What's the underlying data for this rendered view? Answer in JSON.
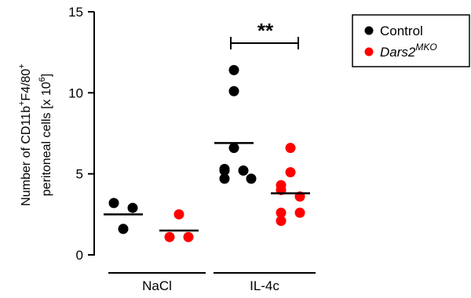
{
  "chart_data": {
    "type": "scatter",
    "title": "",
    "ylabel_line1_parts": [
      "Number of CD11b",
      "+",
      "F4/80",
      "+"
    ],
    "ylabel_line2_parts": [
      "peritoneal cells [x 10",
      "6",
      "]"
    ],
    "ylim": [
      0,
      15
    ],
    "yticks": [
      "0",
      "5",
      "10",
      "15"
    ],
    "groups": [
      "NaCl",
      "IL-4c"
    ],
    "legend": {
      "position": "top-right",
      "control_label": "Control",
      "dars_label": "Dars2",
      "dars_superscript": "MKO"
    },
    "significance": {
      "label": "**",
      "between": [
        "Control IL-4c",
        "Dars2MKO IL-4c"
      ]
    },
    "series": [
      {
        "name": "Control",
        "color": "#000000",
        "subgroups": [
          {
            "group": "NaCl",
            "values": [
              3.2,
              2.9,
              1.6
            ],
            "mean": 2.5
          },
          {
            "group": "IL-4c",
            "values": [
              11.4,
              10.1,
              6.6,
              5.3,
              5.2,
              5.2,
              4.7,
              4.7
            ],
            "mean": 6.9
          }
        ]
      },
      {
        "name": "Dars2MKO",
        "color": "#ff0000",
        "subgroups": [
          {
            "group": "NaCl",
            "values": [
              2.5,
              1.1,
              1.1
            ],
            "mean": 1.5
          },
          {
            "group": "IL-4c",
            "values": [
              6.6,
              5.1,
              4.3,
              4.0,
              3.6,
              2.6,
              2.6,
              2.1
            ],
            "mean": 3.8
          }
        ]
      }
    ]
  }
}
